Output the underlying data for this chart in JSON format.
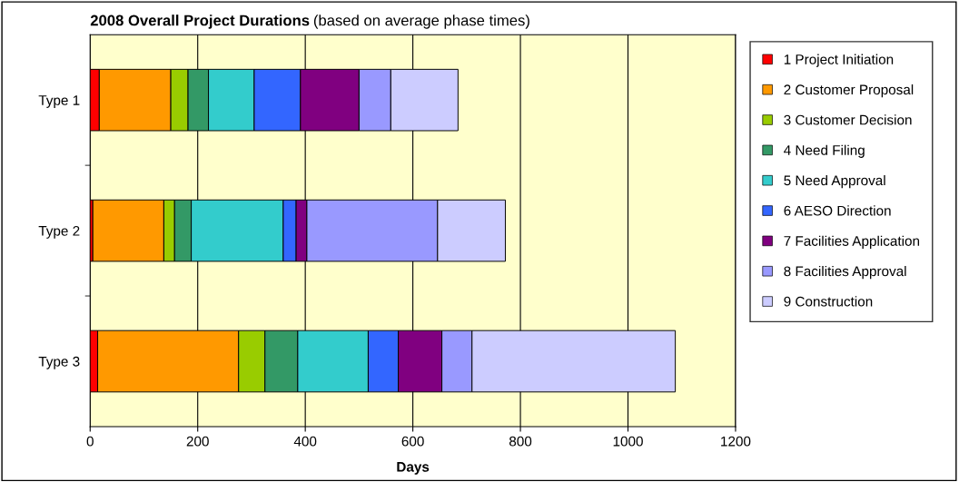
{
  "chart_data": {
    "type": "bar",
    "orientation": "horizontal",
    "stacked": true,
    "title": "2008 Overall Project Durations",
    "subtitle": "(based on average phase times)",
    "xlabel": "Days",
    "categories": [
      "Type 1",
      "Type 2",
      "Type 3"
    ],
    "series": [
      {
        "name": "1 Project Initiation",
        "color": "#ff0000",
        "values": [
          17,
          5,
          14
        ]
      },
      {
        "name": "2 Customer Proposal",
        "color": "#ff9900",
        "values": [
          133,
          132,
          262
        ]
      },
      {
        "name": "3 Customer Decision",
        "color": "#99cc00",
        "values": [
          32,
          20,
          49
        ]
      },
      {
        "name": "4 Need Filing",
        "color": "#339966",
        "values": [
          38,
          31,
          61
        ]
      },
      {
        "name": "5 Need Approval",
        "color": "#33cccc",
        "values": [
          85,
          171,
          131
        ]
      },
      {
        "name": "6 AESO Direction",
        "color": "#3366ff",
        "values": [
          86,
          24,
          56
        ]
      },
      {
        "name": "7 Facilities Application",
        "color": "#800080",
        "values": [
          109,
          20,
          81
        ]
      },
      {
        "name": "8 Facilities Approval",
        "color": "#9999ff",
        "values": [
          59,
          243,
          56
        ]
      },
      {
        "name": "9 Construction",
        "color": "#ccccff",
        "values": [
          125,
          126,
          378
        ]
      }
    ],
    "xlim": [
      0,
      1200
    ],
    "xticks": [
      0,
      200,
      400,
      600,
      800,
      1000,
      1200
    ],
    "grid": "x",
    "legend": "right"
  }
}
